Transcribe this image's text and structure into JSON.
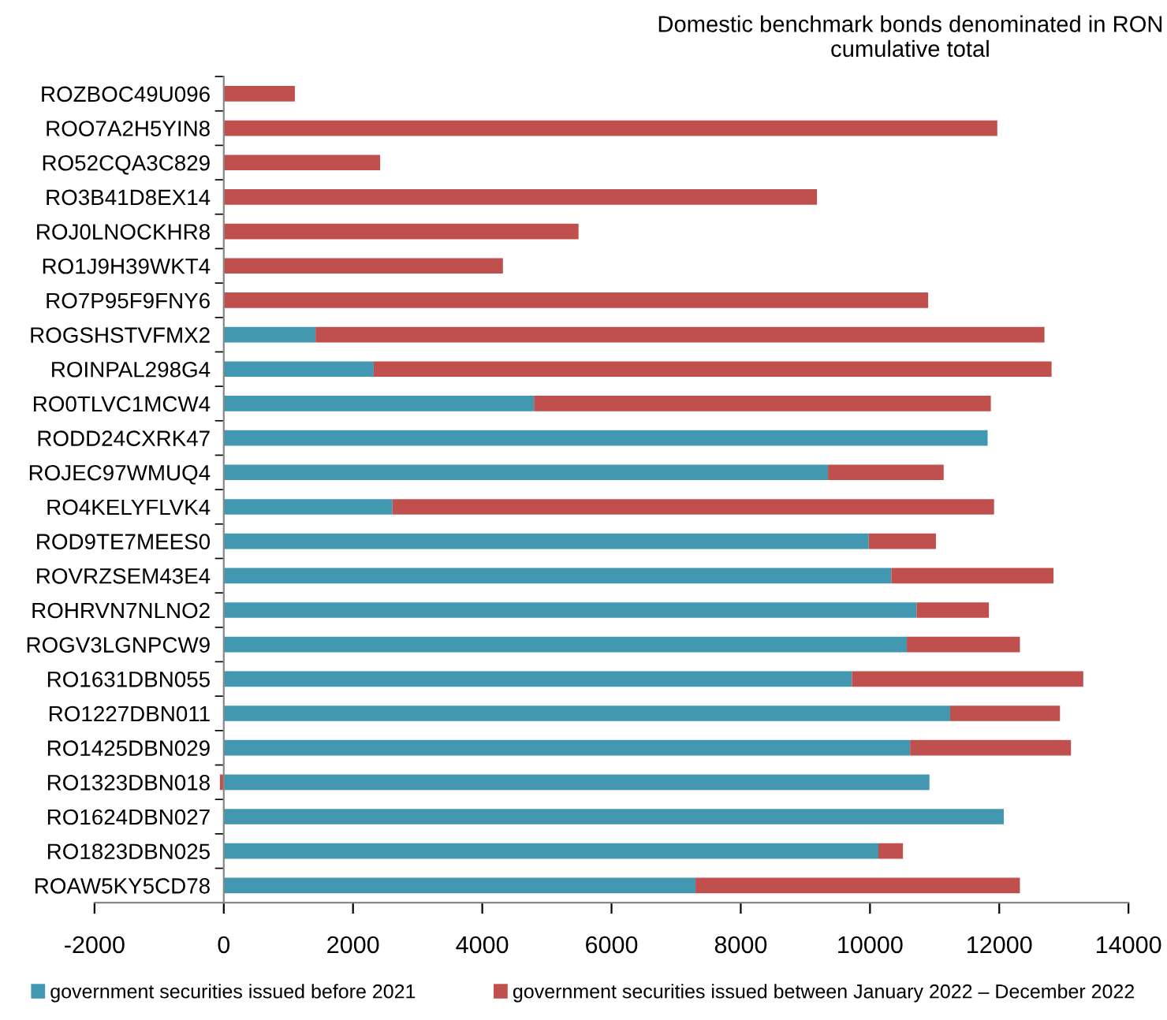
{
  "chart_data": {
    "type": "bar",
    "orientation": "horizontal",
    "stacked": true,
    "title": "Domestic benchmark bonds denominated in RON\ncumulative total",
    "categories": [
      "ROZBOC49U096",
      "ROO7A2H5YIN8",
      "RO52CQA3C829",
      "RO3B41D8EX14",
      "ROJ0LNOCKHR8",
      "RO1J9H39WKT4",
      "RO7P95F9FNY6",
      "ROGSHSTVFMX2",
      "ROINPAL298G4",
      "RO0TLVC1MCW4",
      "RODD24CXRK47",
      "ROJEC97WMUQ4",
      "RO4KELYFLVK4",
      "ROD9TE7MEES0",
      "ROVRZSEM43E4",
      "ROHRVN7NLNO2",
      "ROGV3LGNPCW9",
      "RO1631DBN055",
      "RO1227DBN011",
      "RO1425DBN029",
      "RO1323DBN018",
      "RO1624DBN027",
      "RO1823DBN025",
      "ROAW5KY5CD78"
    ],
    "series": [
      {
        "name": "government securities issued before 2021",
        "color": "#4198b0",
        "values": [
          null,
          null,
          null,
          null,
          null,
          null,
          null,
          1420,
          2320,
          4800,
          11820,
          9350,
          2610,
          9980,
          10330,
          10720,
          10570,
          9720,
          11240,
          10620,
          10920,
          12070,
          10130,
          7300
        ]
      },
      {
        "name": "government securities issued between January 2022 – December 2022",
        "color": "#c0504d",
        "values": [
          1100,
          11970,
          2420,
          9180,
          5490,
          4320,
          10900,
          11280,
          10490,
          7070,
          null,
          1790,
          9310,
          1040,
          2510,
          1120,
          1750,
          3580,
          1700,
          2490,
          -60,
          null,
          380,
          5020
        ]
      }
    ],
    "xlim": [
      -2000,
      14000
    ],
    "xticks": [
      -2000,
      0,
      2000,
      4000,
      6000,
      8000,
      10000,
      12000,
      14000
    ],
    "grid": false,
    "legend": "bottom"
  }
}
